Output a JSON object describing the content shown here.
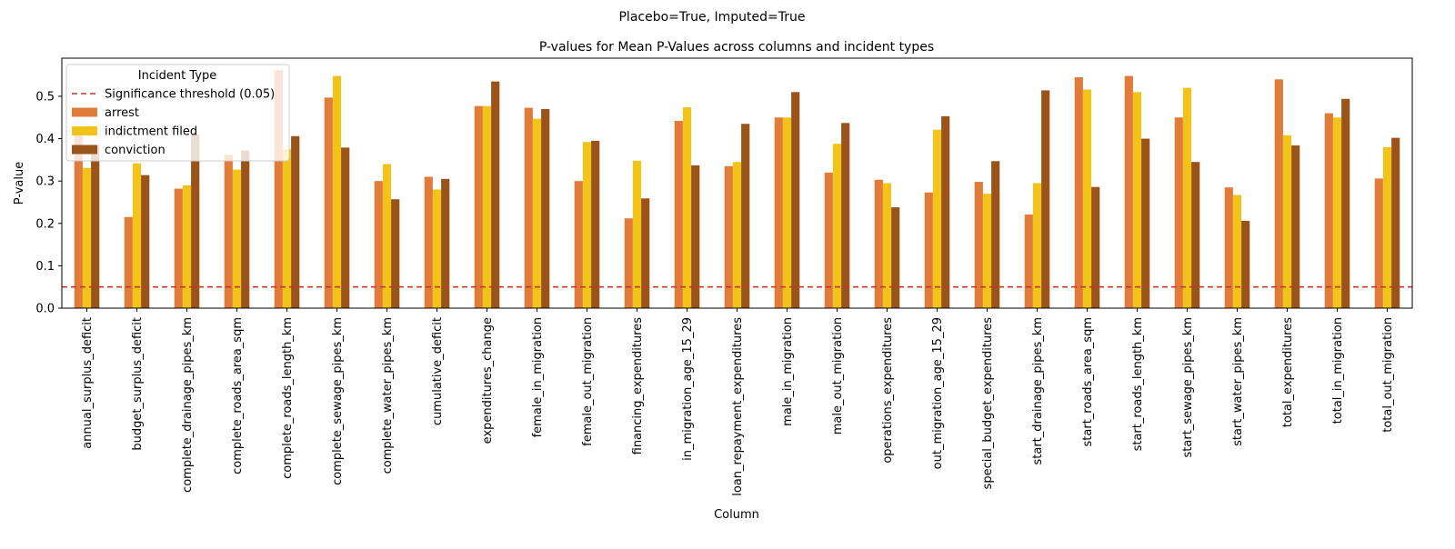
{
  "chart_data": {
    "type": "bar",
    "suptitle": "Placebo=True, Imputed=True",
    "title": "P-values for Mean P-Values across columns and incident types",
    "xlabel": "Column",
    "ylabel": "P-value",
    "ylim": [
      0,
      0.59
    ],
    "yticks": [
      0.0,
      0.1,
      0.2,
      0.3,
      0.4,
      0.5
    ],
    "ytick_labels": [
      "0.0",
      "0.1",
      "0.2",
      "0.3",
      "0.4",
      "0.5"
    ],
    "categories": [
      "annual_surplus_deficit",
      "budget_surplus_deficit",
      "complete_drainage_pipes_km",
      "complete_roads_area_sqm",
      "complete_roads_length_km",
      "complete_sewage_pipes_km",
      "complete_water_pipes_km",
      "cumulative_deficit",
      "expenditures_change",
      "female_in_migration",
      "female_out_migration",
      "financing_expenditures",
      "in_migration_age_15_29",
      "loan_repayment_expenditures",
      "male_in_migration",
      "male_out_migration",
      "operations_expenditures",
      "out_migration_age_15_29",
      "special_budget_expenditures",
      "start_drainage_pipes_km",
      "start_roads_area_sqm",
      "start_roads_length_km",
      "start_sewage_pipes_km",
      "start_water_pipes_km",
      "total_expenditures",
      "total_in_migration",
      "total_out_migration"
    ],
    "series": [
      {
        "name": "arrest",
        "color": "#E07B39",
        "values": [
          0.41,
          0.215,
          0.282,
          0.362,
          0.562,
          0.497,
          0.3,
          0.31,
          0.477,
          0.473,
          0.3,
          0.212,
          0.442,
          0.335,
          0.45,
          0.32,
          0.303,
          0.273,
          0.298,
          0.221,
          0.545,
          0.548,
          0.45,
          0.285,
          0.54,
          0.46,
          0.306
        ]
      },
      {
        "name": "indictment filed",
        "color": "#F2C318",
        "values": [
          0.331,
          0.342,
          0.29,
          0.327,
          0.375,
          0.548,
          0.34,
          0.28,
          0.477,
          0.447,
          0.392,
          0.348,
          0.474,
          0.345,
          0.45,
          0.388,
          0.295,
          0.421,
          0.27,
          0.295,
          0.516,
          0.51,
          0.52,
          0.267,
          0.408,
          0.45,
          0.38
        ]
      },
      {
        "name": "conviction",
        "color": "#9A5419",
        "values": [
          0.385,
          0.314,
          0.41,
          0.372,
          0.406,
          0.379,
          0.257,
          0.305,
          0.535,
          0.47,
          0.395,
          0.259,
          0.337,
          0.435,
          0.51,
          0.437,
          0.238,
          0.453,
          0.347,
          0.514,
          0.286,
          0.4,
          0.345,
          0.206,
          0.384,
          0.494,
          0.402
        ]
      }
    ],
    "threshold": {
      "value": 0.05,
      "label": "Significance threshold (0.05)",
      "color": "#C0392B",
      "style": "dashed"
    },
    "legend": {
      "title": "Incident Type",
      "placement": "top-left"
    },
    "grid": false
  }
}
